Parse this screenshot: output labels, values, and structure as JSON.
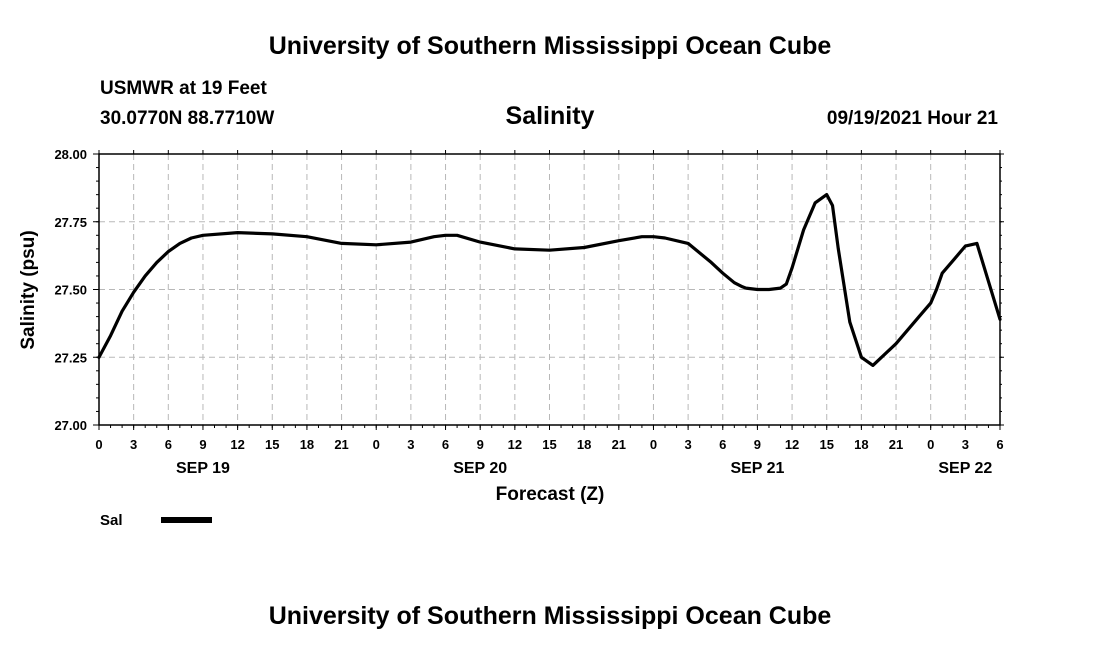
{
  "header": {
    "title_top": "University of Southern Mississippi Ocean Cube",
    "station": "USMWR at 19 Feet",
    "coords": "30.0770N  88.7710W",
    "variable": "Salinity",
    "timestamp": "09/19/2021 Hour 21",
    "title_bottom": "University of Southern Mississippi Ocean Cube"
  },
  "legend": {
    "label": "Sal",
    "color": "#000000"
  },
  "chart_data": {
    "type": "line",
    "title": "Salinity",
    "xlabel": "Forecast (Z)",
    "ylabel": "Salinity (psu)",
    "ylim": [
      27.0,
      28.0
    ],
    "xlim": [
      0,
      78
    ],
    "grid": true,
    "yticks": [
      "27.00",
      "27.25",
      "27.50",
      "27.75",
      "28.00"
    ],
    "ytick_values": [
      27.0,
      27.25,
      27.5,
      27.75,
      28.0
    ],
    "xticks": [
      "0",
      "3",
      "6",
      "9",
      "12",
      "15",
      "18",
      "21",
      "0",
      "3",
      "6",
      "9",
      "12",
      "15",
      "18",
      "21",
      "0",
      "3",
      "6",
      "9",
      "12",
      "15",
      "18",
      "21",
      "0",
      "3",
      "6"
    ],
    "date_labels": [
      {
        "label": "SEP 19",
        "hour": 9
      },
      {
        "label": "SEP 20",
        "hour": 33
      },
      {
        "label": "SEP 21",
        "hour": 57
      },
      {
        "label": "SEP 22",
        "hour": 75
      }
    ],
    "series": [
      {
        "name": "Sal",
        "color": "#000000",
        "x": [
          0,
          1,
          2,
          3,
          4,
          5,
          6,
          7,
          8,
          9,
          12,
          15,
          18,
          21,
          24,
          27,
          29,
          30,
          31,
          33,
          36,
          39,
          42,
          45,
          47,
          48,
          49,
          51,
          53,
          54,
          55,
          55.7,
          56,
          57,
          58,
          59,
          59.5,
          60,
          61,
          62,
          63,
          63.5,
          64,
          65,
          66,
          67,
          69,
          71,
          72,
          72.5,
          73,
          74,
          75,
          76,
          78
        ],
        "y": [
          27.25,
          27.33,
          27.42,
          27.49,
          27.55,
          27.6,
          27.64,
          27.67,
          27.69,
          27.7,
          27.71,
          27.705,
          27.695,
          27.67,
          27.665,
          27.675,
          27.695,
          27.7,
          27.7,
          27.675,
          27.65,
          27.645,
          27.655,
          27.68,
          27.695,
          27.695,
          27.69,
          27.67,
          27.6,
          27.56,
          27.525,
          27.51,
          27.505,
          27.5,
          27.5,
          27.505,
          27.52,
          27.58,
          27.72,
          27.82,
          27.85,
          27.81,
          27.65,
          27.38,
          27.25,
          27.22,
          27.3,
          27.4,
          27.45,
          27.5,
          27.56,
          27.61,
          27.66,
          27.67,
          27.39
        ]
      }
    ]
  },
  "footer": {
    "source": ""
  }
}
